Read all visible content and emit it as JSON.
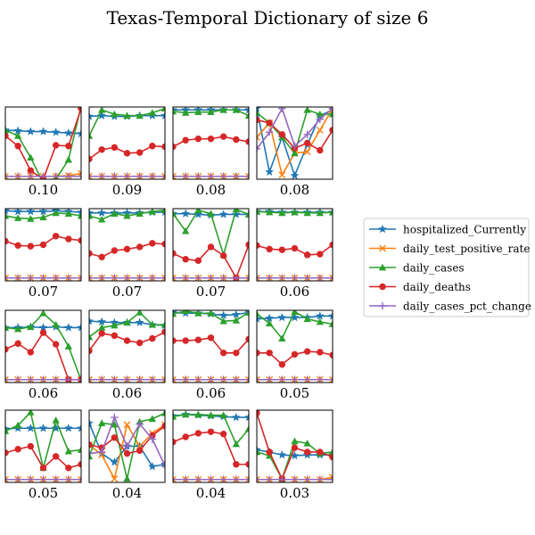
{
  "title": "Texas-Temporal Dictionary of size 6",
  "legend": {
    "placement": "right",
    "entries": [
      {
        "name": "hospitalized_Currently",
        "color": "#1f77b4",
        "marker": "star"
      },
      {
        "name": "daily_test_positive_rate",
        "color": "#ff7f0e",
        "marker": "x"
      },
      {
        "name": "daily_cases",
        "color": "#2ca02c",
        "marker": "triangle"
      },
      {
        "name": "daily_deaths",
        "color": "#d62728",
        "marker": "circle"
      },
      {
        "name": "daily_cases_pct_change",
        "color": "#9467bd",
        "marker": "plus"
      }
    ]
  },
  "chart_data": {
    "type": "line",
    "grid": false,
    "axes_ticks": false,
    "ylim": [
      0,
      1
    ],
    "x": [
      0,
      1,
      2,
      3,
      4,
      5,
      6
    ],
    "series_names": [
      "hospitalized_Currently",
      "daily_test_positive_rate",
      "daily_cases",
      "daily_deaths",
      "daily_cases_pct_change"
    ],
    "panels": [
      {
        "label": "0.10",
        "series": [
          [
            0.68,
            0.67,
            0.66,
            0.66,
            0.65,
            0.64,
            0.63
          ],
          [
            0.04,
            0.04,
            0.04,
            0.04,
            0.04,
            0.05,
            0.08
          ],
          [
            0.68,
            0.6,
            0.3,
            -0.05,
            0.0,
            0.27,
            1.02
          ],
          [
            0.6,
            0.46,
            0.12,
            0.0,
            0.47,
            0.46,
            0.98
          ],
          [
            0.04,
            0.04,
            0.04,
            0.04,
            0.04,
            0.04,
            0.04
          ]
        ]
      },
      {
        "label": "0.09",
        "series": [
          [
            0.87,
            0.88,
            0.87,
            0.87,
            0.88,
            0.88,
            0.88
          ],
          [
            0.04,
            0.04,
            0.04,
            0.04,
            0.04,
            0.04,
            0.04
          ],
          [
            0.6,
            0.96,
            0.9,
            0.88,
            0.88,
            0.92,
            0.98
          ],
          [
            0.28,
            0.41,
            0.44,
            0.36,
            0.37,
            0.46,
            0.45
          ],
          [
            0.04,
            0.04,
            0.04,
            0.04,
            0.04,
            0.04,
            0.04
          ]
        ]
      },
      {
        "label": "0.08",
        "series": [
          [
            0.96,
            0.96,
            0.96,
            0.96,
            0.96,
            0.96,
            0.96
          ],
          [
            0.04,
            0.04,
            0.04,
            0.04,
            0.04,
            0.04,
            0.04
          ],
          [
            0.94,
            0.92,
            0.93,
            0.93,
            0.96,
            0.96,
            0.88
          ],
          [
            0.45,
            0.54,
            0.56,
            0.56,
            0.59,
            0.55,
            0.52
          ],
          [
            0.04,
            0.04,
            0.04,
            0.04,
            0.04,
            0.04,
            0.04
          ]
        ]
      },
      {
        "label": "0.08",
        "series": [
          [
            0.98,
            0.1,
            0.58,
            0.05,
            0.48,
            0.88,
            0.96
          ],
          [
            0.58,
            0.78,
            0.06,
            0.36,
            0.38,
            0.68,
            0.98
          ],
          [
            0.92,
            0.78,
            0.58,
            0.36,
            0.96,
            0.9,
            0.9
          ],
          [
            0.82,
            0.78,
            0.62,
            0.43,
            0.5,
            0.4,
            0.68
          ],
          [
            0.42,
            0.65,
            0.98,
            0.46,
            0.62,
            0.83,
            0.98
          ]
        ]
      },
      {
        "label": "0.07",
        "series": [
          [
            0.97,
            0.96,
            0.96,
            0.96,
            0.97,
            0.96,
            0.95
          ],
          [
            0.04,
            0.04,
            0.04,
            0.04,
            0.04,
            0.04,
            0.04
          ],
          [
            0.9,
            0.87,
            0.86,
            0.88,
            0.94,
            0.93,
            0.9
          ],
          [
            0.55,
            0.49,
            0.48,
            0.5,
            0.62,
            0.58,
            0.56
          ],
          [
            0.04,
            0.04,
            0.04,
            0.04,
            0.04,
            0.04,
            0.04
          ]
        ]
      },
      {
        "label": "0.07",
        "series": [
          [
            0.94,
            0.94,
            0.94,
            0.94,
            0.94,
            0.95,
            0.95
          ],
          [
            0.04,
            0.04,
            0.04,
            0.04,
            0.04,
            0.04,
            0.04
          ],
          [
            0.9,
            0.85,
            0.93,
            0.9,
            0.93,
            0.96,
            0.98
          ],
          [
            0.38,
            0.33,
            0.42,
            0.44,
            0.47,
            0.52,
            0.51
          ],
          [
            0.04,
            0.04,
            0.04,
            0.04,
            0.04,
            0.04,
            0.04
          ]
        ]
      },
      {
        "label": "0.07",
        "series": [
          [
            0.93,
            0.93,
            0.92,
            0.91,
            0.92,
            0.92,
            0.92
          ],
          [
            0.04,
            0.04,
            0.04,
            0.04,
            0.04,
            0.04,
            0.04
          ],
          [
            0.93,
            0.69,
            0.98,
            0.93,
            0.36,
            0.99,
            0.92
          ],
          [
            0.38,
            0.3,
            0.28,
            0.47,
            0.35,
            0.04,
            0.5
          ],
          [
            0.04,
            0.04,
            0.04,
            0.04,
            0.04,
            0.04,
            0.04
          ]
        ]
      },
      {
        "label": "0.06",
        "series": [
          [
            0.96,
            0.96,
            0.95,
            0.95,
            0.95,
            0.95,
            0.95
          ],
          [
            0.04,
            0.04,
            0.04,
            0.04,
            0.04,
            0.04,
            0.04
          ],
          [
            0.96,
            0.95,
            0.94,
            0.95,
            0.94,
            0.94,
            0.95
          ],
          [
            0.49,
            0.44,
            0.43,
            0.45,
            0.36,
            0.37,
            0.5
          ],
          [
            0.04,
            0.04,
            0.04,
            0.04,
            0.04,
            0.04,
            0.04
          ]
        ]
      },
      {
        "label": "0.06",
        "series": [
          [
            0.76,
            0.76,
            0.77,
            0.76,
            0.77,
            0.76,
            0.76
          ],
          [
            0.04,
            0.04,
            0.04,
            0.04,
            0.04,
            0.04,
            0.04
          ],
          [
            0.76,
            0.74,
            0.77,
            0.96,
            0.8,
            0.5,
            0.03
          ],
          [
            0.46,
            0.54,
            0.42,
            0.69,
            0.53,
            0.04,
            0.04
          ],
          [
            0.04,
            0.04,
            0.04,
            0.04,
            0.04,
            0.04,
            0.04
          ]
        ]
      },
      {
        "label": "0.06",
        "series": [
          [
            0.85,
            0.84,
            0.83,
            0.83,
            0.83,
            0.8,
            0.79
          ],
          [
            0.04,
            0.04,
            0.04,
            0.04,
            0.04,
            0.04,
            0.04
          ],
          [
            0.63,
            0.76,
            0.79,
            0.83,
            0.97,
            0.8,
            0.8
          ],
          [
            0.44,
            0.68,
            0.65,
            0.58,
            0.55,
            0.61,
            0.7
          ],
          [
            0.04,
            0.04,
            0.04,
            0.04,
            0.04,
            0.04,
            0.04
          ]
        ]
      },
      {
        "label": "0.06",
        "series": [
          [
            0.97,
            0.96,
            0.96,
            0.95,
            0.93,
            0.94,
            0.97
          ],
          [
            0.04,
            0.04,
            0.04,
            0.04,
            0.04,
            0.04,
            0.04
          ],
          [
            0.95,
            0.99,
            0.96,
            0.96,
            0.85,
            0.86,
            0.97
          ],
          [
            0.58,
            0.58,
            0.59,
            0.62,
            0.41,
            0.41,
            0.6
          ],
          [
            0.04,
            0.04,
            0.04,
            0.04,
            0.04,
            0.04,
            0.04
          ]
        ]
      },
      {
        "label": "0.05",
        "series": [
          [
            0.88,
            0.89,
            0.9,
            0.9,
            0.9,
            0.92,
            0.92
          ],
          [
            0.04,
            0.04,
            0.04,
            0.04,
            0.04,
            0.04,
            0.04
          ],
          [
            0.95,
            0.82,
            0.61,
            0.98,
            0.88,
            0.84,
            0.81
          ],
          [
            0.41,
            0.41,
            0.25,
            0.39,
            0.43,
            0.42,
            0.38
          ],
          [
            0.04,
            0.04,
            0.04,
            0.04,
            0.04,
            0.04,
            0.04
          ]
        ]
      },
      {
        "label": "0.05",
        "series": [
          [
            0.74,
            0.75,
            0.75,
            0.75,
            0.75,
            0.75,
            0.75
          ],
          [
            0.04,
            0.04,
            0.04,
            0.04,
            0.04,
            0.04,
            0.04
          ],
          [
            0.71,
            0.79,
            0.97,
            0.2,
            0.86,
            0.43,
            0.45
          ],
          [
            0.41,
            0.46,
            0.5,
            0.2,
            0.36,
            0.2,
            0.25
          ],
          [
            0.04,
            0.04,
            0.04,
            0.04,
            0.04,
            0.04,
            0.04
          ]
        ]
      },
      {
        "label": "0.04",
        "series": [
          [
            0.82,
            0.4,
            0.28,
            0.5,
            0.5,
            0.22,
            0.25
          ],
          [
            0.52,
            0.38,
            0.05,
            0.8,
            0.5,
            0.68,
            0.8
          ],
          [
            0.36,
            0.82,
            0.8,
            0.05,
            0.84,
            0.88,
            0.96
          ],
          [
            0.52,
            0.48,
            0.62,
            0.4,
            0.44,
            0.65,
            0.78
          ],
          [
            0.4,
            0.42,
            0.9,
            0.5,
            0.81,
            0.6,
            0.23
          ]
        ]
      },
      {
        "label": "0.04",
        "series": [
          [
            0.92,
            0.94,
            0.93,
            0.92,
            0.91,
            0.9,
            0.9
          ],
          [
            0.04,
            0.04,
            0.04,
            0.04,
            0.04,
            0.04,
            0.04
          ],
          [
            0.91,
            0.94,
            0.94,
            0.93,
            0.93,
            0.53,
            0.74
          ],
          [
            0.56,
            0.63,
            0.68,
            0.7,
            0.67,
            0.25,
            0.25
          ],
          [
            0.04,
            0.04,
            0.04,
            0.04,
            0.04,
            0.04,
            0.04
          ]
        ]
      },
      {
        "label": "0.03",
        "series": [
          [
            0.45,
            0.42,
            0.38,
            0.37,
            0.38,
            0.38,
            0.38
          ],
          [
            0.04,
            0.04,
            0.04,
            0.04,
            0.04,
            0.04,
            0.07
          ],
          [
            0.42,
            0.37,
            0.05,
            0.57,
            0.54,
            0.4,
            0.42
          ],
          [
            0.96,
            0.42,
            0.05,
            0.48,
            0.42,
            0.42,
            0.35
          ],
          [
            0.04,
            0.04,
            0.04,
            0.04,
            0.04,
            0.04,
            0.04
          ]
        ]
      }
    ]
  }
}
